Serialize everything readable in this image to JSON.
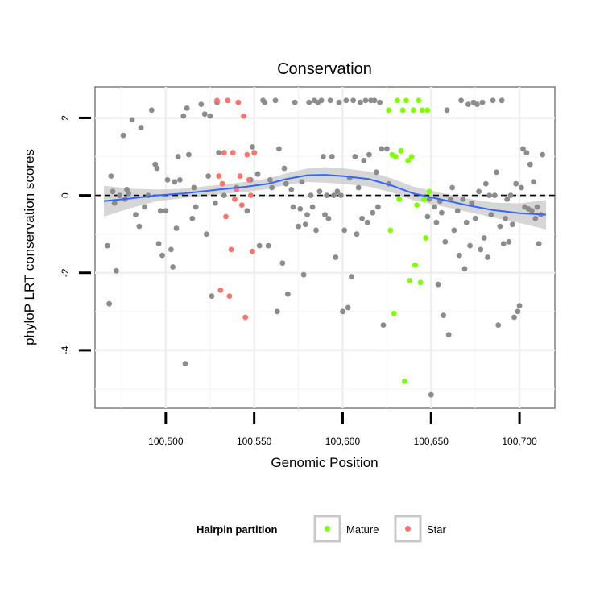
{
  "chart_data": {
    "type": "scatter",
    "title": "Conservation",
    "xlabel": "Genomic Position",
    "ylabel": "phyloP LRT conservation scores",
    "xlim": [
      100460,
      100720
    ],
    "ylim": [
      -5.5,
      2.8
    ],
    "x_ticks": [
      100500,
      100550,
      100600,
      100650,
      100700
    ],
    "x_tick_labels": [
      "100,500",
      "100,550",
      "100,600",
      "100,650",
      "100,700"
    ],
    "y_ticks": [
      -4,
      -2,
      0,
      2
    ],
    "y_tick_labels": [
      "-4",
      "-2",
      "0",
      "2"
    ],
    "reference_line": {
      "y": 0,
      "style": "dashed"
    },
    "legend": {
      "title": "Hairpin partition",
      "position": "bottom",
      "entries": [
        {
          "label": "Mature",
          "color": "#7FFF00"
        },
        {
          "label": "Star",
          "color": "#F8766D"
        }
      ]
    },
    "colors": {
      "other": "#8C8C8C",
      "mature": "#7FFF00",
      "star": "#F8766D",
      "smooth": "#3366FF",
      "band": "#C8C8C8"
    },
    "series": [
      {
        "name": "Other",
        "points": [
          [
            100467,
            -1.3
          ],
          [
            100468,
            -2.8
          ],
          [
            100469,
            0.5
          ],
          [
            100470,
            0.1
          ],
          [
            100471,
            -0.2
          ],
          [
            100472,
            -1.95
          ],
          [
            100474,
            0.0
          ],
          [
            100476,
            1.55
          ],
          [
            100477,
            -0.1
          ],
          [
            100478,
            0.15
          ],
          [
            100479,
            0.05
          ],
          [
            100481,
            1.95
          ],
          [
            100483,
            -0.5
          ],
          [
            100485,
            -0.8
          ],
          [
            100486,
            1.75
          ],
          [
            100488,
            -0.3
          ],
          [
            100490,
            0.0
          ],
          [
            100492,
            2.2
          ],
          [
            100494,
            0.8
          ],
          [
            100495,
            0.7
          ],
          [
            100496,
            -1.25
          ],
          [
            100497,
            -0.4
          ],
          [
            100498,
            -1.55
          ],
          [
            100500,
            -0.4
          ],
          [
            100501,
            0.4
          ],
          [
            100503,
            -1.4
          ],
          [
            100504,
            -1.85
          ],
          [
            100505,
            0.35
          ],
          [
            100506,
            -0.85
          ],
          [
            100507,
            1.0
          ],
          [
            100508,
            0.4
          ],
          [
            100510,
            2.05
          ],
          [
            100511,
            -4.35
          ],
          [
            100512,
            2.25
          ],
          [
            100513,
            1.05
          ],
          [
            100515,
            -0.6
          ],
          [
            100516,
            0.2
          ],
          [
            100517,
            -0.3
          ],
          [
            100520,
            2.35
          ],
          [
            100522,
            2.1
          ],
          [
            100523,
            -1.0
          ],
          [
            100524,
            0.5
          ],
          [
            100525,
            2.05
          ],
          [
            100526,
            -2.6
          ],
          [
            100528,
            -0.2
          ],
          [
            100529,
            2.4
          ],
          [
            100530,
            1.1
          ],
          [
            100533,
            0.0
          ],
          [
            100540,
            0.2
          ],
          [
            100546,
            -0.4
          ],
          [
            100548,
            0.4
          ],
          [
            100549,
            1.25
          ],
          [
            100552,
            0.55
          ],
          [
            100553,
            -1.3
          ],
          [
            100555,
            2.45
          ],
          [
            100556,
            2.4
          ],
          [
            100558,
            -1.3
          ],
          [
            100559,
            0.4
          ],
          [
            100560,
            0.2
          ],
          [
            100562,
            2.45
          ],
          [
            100563,
            -3.0
          ],
          [
            100564,
            1.2
          ],
          [
            100566,
            -1.75
          ],
          [
            100567,
            0.7
          ],
          [
            100568,
            0.3
          ],
          [
            100569,
            -2.55
          ],
          [
            100571,
            0.15
          ],
          [
            100572,
            -0.3
          ],
          [
            100573,
            2.4
          ],
          [
            100575,
            -0.8
          ],
          [
            100576,
            -0.35
          ],
          [
            100577,
            0.35
          ],
          [
            100578,
            -2.05
          ],
          [
            100579,
            -0.75
          ],
          [
            100580,
            -0.5
          ],
          [
            100581,
            2.4
          ],
          [
            100582,
            0.0
          ],
          [
            100583,
            -0.3
          ],
          [
            100584,
            2.45
          ],
          [
            100585,
            -0.9
          ],
          [
            100586,
            2.4
          ],
          [
            100587,
            0.1
          ],
          [
            100588,
            2.45
          ],
          [
            100589,
            1.0
          ],
          [
            100590,
            -0.5
          ],
          [
            100591,
            0.0
          ],
          [
            100592,
            -0.6
          ],
          [
            100593,
            2.45
          ],
          [
            100594,
            1.0
          ],
          [
            100595,
            0.0
          ],
          [
            100596,
            -1.6
          ],
          [
            100597,
            0.1
          ],
          [
            100598,
            2.4
          ],
          [
            100599,
            0.0
          ],
          [
            100600,
            -3.0
          ],
          [
            100601,
            -0.9
          ],
          [
            100602,
            2.45
          ],
          [
            100603,
            -2.9
          ],
          [
            100604,
            0.45
          ],
          [
            100605,
            -2.1
          ],
          [
            100606,
            2.45
          ],
          [
            100607,
            1.0
          ],
          [
            100608,
            -1.0
          ],
          [
            100609,
            0.2
          ],
          [
            100610,
            2.4
          ],
          [
            100611,
            -0.6
          ],
          [
            100612,
            0.9
          ],
          [
            100613,
            2.45
          ],
          [
            100614,
            -0.7
          ],
          [
            100615,
            1.05
          ],
          [
            100616,
            2.45
          ],
          [
            100617,
            -0.45
          ],
          [
            100618,
            2.45
          ],
          [
            100619,
            0.6
          ],
          [
            100620,
            -0.3
          ],
          [
            100621,
            2.4
          ],
          [
            100622,
            1.2
          ],
          [
            100623,
            -3.35
          ],
          [
            100625,
            1.2
          ],
          [
            100626,
            0.3
          ],
          [
            100648,
            -0.55
          ],
          [
            100649,
            -0.1
          ],
          [
            100650,
            -5.15
          ],
          [
            100652,
            -0.3
          ],
          [
            100653,
            -0.7
          ],
          [
            100654,
            -2.3
          ],
          [
            100655,
            -0.15
          ],
          [
            100656,
            -0.45
          ],
          [
            100657,
            -3.1
          ],
          [
            100658,
            -1.2
          ],
          [
            100659,
            2.2
          ],
          [
            100660,
            -3.6
          ],
          [
            100661,
            -0.1
          ],
          [
            100662,
            0.2
          ],
          [
            100663,
            -0.9
          ],
          [
            100665,
            -0.4
          ],
          [
            100666,
            -1.55
          ],
          [
            100667,
            2.45
          ],
          [
            100668,
            -0.1
          ],
          [
            100669,
            -1.9
          ],
          [
            100670,
            -0.7
          ],
          [
            100671,
            2.35
          ],
          [
            100672,
            -1.3
          ],
          [
            100673,
            -0.2
          ],
          [
            100674,
            2.4
          ],
          [
            100675,
            -0.6
          ],
          [
            100676,
            2.35
          ],
          [
            100677,
            0.1
          ],
          [
            100678,
            -1.4
          ],
          [
            100679,
            2.4
          ],
          [
            100680,
            -1.1
          ],
          [
            100681,
            0.3
          ],
          [
            100682,
            -1.6
          ],
          [
            100683,
            0.0
          ],
          [
            100684,
            -0.5
          ],
          [
            100685,
            2.45
          ],
          [
            100686,
            0.0
          ],
          [
            100687,
            0.6
          ],
          [
            100688,
            -3.35
          ],
          [
            100689,
            -0.8
          ],
          [
            100690,
            2.45
          ],
          [
            100691,
            -1.25
          ],
          [
            100692,
            -0.6
          ],
          [
            100693,
            -0.1
          ],
          [
            100694,
            -1.2
          ],
          [
            100695,
            0.0
          ],
          [
            100696,
            -0.75
          ],
          [
            100697,
            -3.15
          ],
          [
            100698,
            0.3
          ],
          [
            100699,
            -3.0
          ],
          [
            100700,
            -2.85
          ],
          [
            100701,
            0.2
          ],
          [
            100702,
            1.2
          ],
          [
            100703,
            -0.3
          ],
          [
            100704,
            1.1
          ],
          [
            100705,
            -0.35
          ],
          [
            100706,
            0.8
          ],
          [
            100707,
            -0.4
          ],
          [
            100708,
            0.35
          ],
          [
            100709,
            -0.6
          ],
          [
            100710,
            -0.3
          ],
          [
            100711,
            -1.25
          ],
          [
            100712,
            -0.5
          ],
          [
            100713,
            1.05
          ]
        ]
      },
      {
        "name": "Mature",
        "points": [
          [
            100626,
            2.2
          ],
          [
            100627,
            -0.9
          ],
          [
            100628,
            1.05
          ],
          [
            100629,
            -3.05
          ],
          [
            100630,
            1.0
          ],
          [
            100631,
            2.45
          ],
          [
            100632,
            -0.1
          ],
          [
            100633,
            1.15
          ],
          [
            100634,
            2.2
          ],
          [
            100635,
            -4.8
          ],
          [
            100636,
            2.45
          ],
          [
            100637,
            0.9
          ],
          [
            100638,
            -2.2
          ],
          [
            100639,
            1.0
          ],
          [
            100640,
            2.2
          ],
          [
            100641,
            -1.8
          ],
          [
            100642,
            -0.25
          ],
          [
            100643,
            2.45
          ],
          [
            100644,
            -2.25
          ],
          [
            100645,
            2.2
          ],
          [
            100646,
            -0.1
          ],
          [
            100647,
            -1.1
          ],
          [
            100648,
            2.2
          ],
          [
            100649,
            0.1
          ]
        ]
      },
      {
        "name": "Star",
        "points": [
          [
            100529,
            2.45
          ],
          [
            100530,
            0.5
          ],
          [
            100531,
            -2.45
          ],
          [
            100532,
            0.3
          ],
          [
            100533,
            1.1
          ],
          [
            100534,
            -0.55
          ],
          [
            100535,
            2.45
          ],
          [
            100536,
            -2.6
          ],
          [
            100537,
            -1.4
          ],
          [
            100538,
            1.1
          ],
          [
            100539,
            -0.1
          ],
          [
            100540,
            0.15
          ],
          [
            100541,
            2.4
          ],
          [
            100542,
            0.5
          ],
          [
            100543,
            -0.25
          ],
          [
            100544,
            2.05
          ],
          [
            100545,
            -3.15
          ],
          [
            100546,
            1.05
          ],
          [
            100547,
            0.4
          ],
          [
            100548,
            0.0
          ],
          [
            100549,
            -1.45
          ],
          [
            100550,
            1.1
          ]
        ]
      }
    ],
    "smooth_line": [
      [
        100465,
        -0.15
      ],
      [
        100480,
        -0.08
      ],
      [
        100495,
        0.0
      ],
      [
        100510,
        0.05
      ],
      [
        100520,
        0.1
      ],
      [
        100530,
        0.15
      ],
      [
        100545,
        0.22
      ],
      [
        100558,
        0.3
      ],
      [
        100568,
        0.42
      ],
      [
        100580,
        0.52
      ],
      [
        100590,
        0.53
      ],
      [
        100600,
        0.5
      ],
      [
        100615,
        0.42
      ],
      [
        100628,
        0.25
      ],
      [
        100640,
        0.05
      ],
      [
        100655,
        -0.1
      ],
      [
        100670,
        -0.25
      ],
      [
        100685,
        -0.38
      ],
      [
        100700,
        -0.46
      ],
      [
        100715,
        -0.5
      ]
    ],
    "smooth_band_halfwidth": [
      [
        100465,
        0.4
      ],
      [
        100480,
        0.25
      ],
      [
        100495,
        0.15
      ],
      [
        100510,
        0.12
      ],
      [
        100530,
        0.12
      ],
      [
        100550,
        0.13
      ],
      [
        100570,
        0.15
      ],
      [
        100590,
        0.2
      ],
      [
        100610,
        0.2
      ],
      [
        100630,
        0.18
      ],
      [
        100650,
        0.17
      ],
      [
        100670,
        0.17
      ],
      [
        100690,
        0.2
      ],
      [
        100705,
        0.28
      ],
      [
        100715,
        0.38
      ]
    ]
  }
}
